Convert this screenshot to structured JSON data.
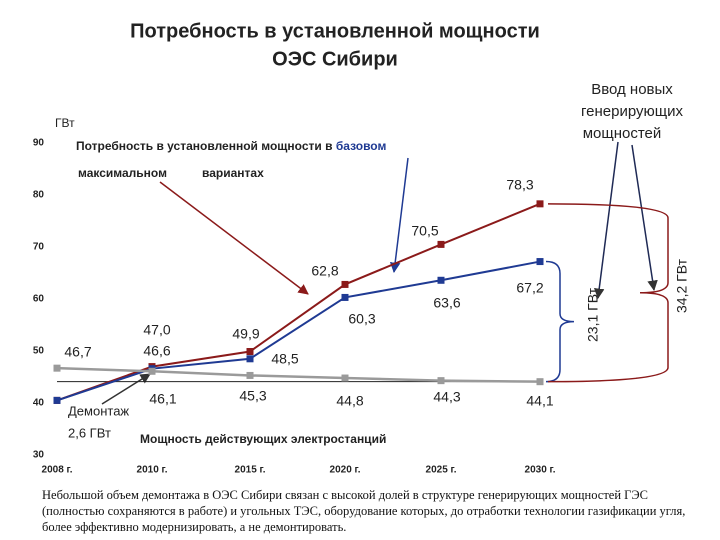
{
  "chart_data": {
    "type": "line",
    "title": [
      "Потребность в установленной мощности",
      "ОЭС Сибири"
    ],
    "y_label": "ГВт",
    "categories": [
      "2008 г.",
      "2010 г.",
      "2015 г.",
      "2020 г.",
      "2025 г.",
      "2030 г."
    ],
    "ylim": [
      30,
      90
    ],
    "yticks": [
      30,
      40,
      50,
      60,
      70,
      80,
      90
    ],
    "legend_text": {
      "prefix": "Потребность в установленной мощности в",
      "suffix": "вариантах"
    },
    "series": [
      {
        "name": "максимальном",
        "color": "#8b1a1a",
        "values": [
          40.5,
          47.0,
          49.9,
          62.8,
          70.5,
          78.3
        ],
        "value_labels": [
          null,
          "47,0",
          "49,9",
          "62,8",
          "70,5",
          "78,3"
        ]
      },
      {
        "name": "базовом",
        "color": "#1f3a93",
        "values": [
          40.5,
          46.6,
          48.5,
          60.3,
          63.6,
          67.2
        ],
        "value_labels": [
          null,
          "46,6",
          "48,5",
          "60,3",
          "63,6",
          "67,2"
        ]
      },
      {
        "name": "Мощность действующих электростанций",
        "color": "#9a9a9a",
        "values": [
          46.7,
          46.1,
          45.3,
          44.8,
          44.3,
          44.1
        ],
        "value_labels": [
          "46,7",
          "46,1",
          "45,3",
          "44,8",
          "44,3",
          "44,1"
        ]
      }
    ],
    "annotations": {
      "new_capacity": [
        "Ввод новых",
        "генерирующих",
        "мощностей"
      ],
      "dismantling": [
        "Демонтаж",
        "2,6 ГВт"
      ],
      "base_increase": "23,1 ГВт",
      "max_increase": "34,2 ГВт"
    },
    "footnote": "Небольшой объем демонтажа в ОЭС Сибири связан с высокой долей в структуре генерирующих мощностей ГЭС (полностью сохраняются в работе) и угольных ТЭС, оборудование которых, до отработки технологии газификации угля, более эффективно модернизировать, а не демонтировать."
  }
}
